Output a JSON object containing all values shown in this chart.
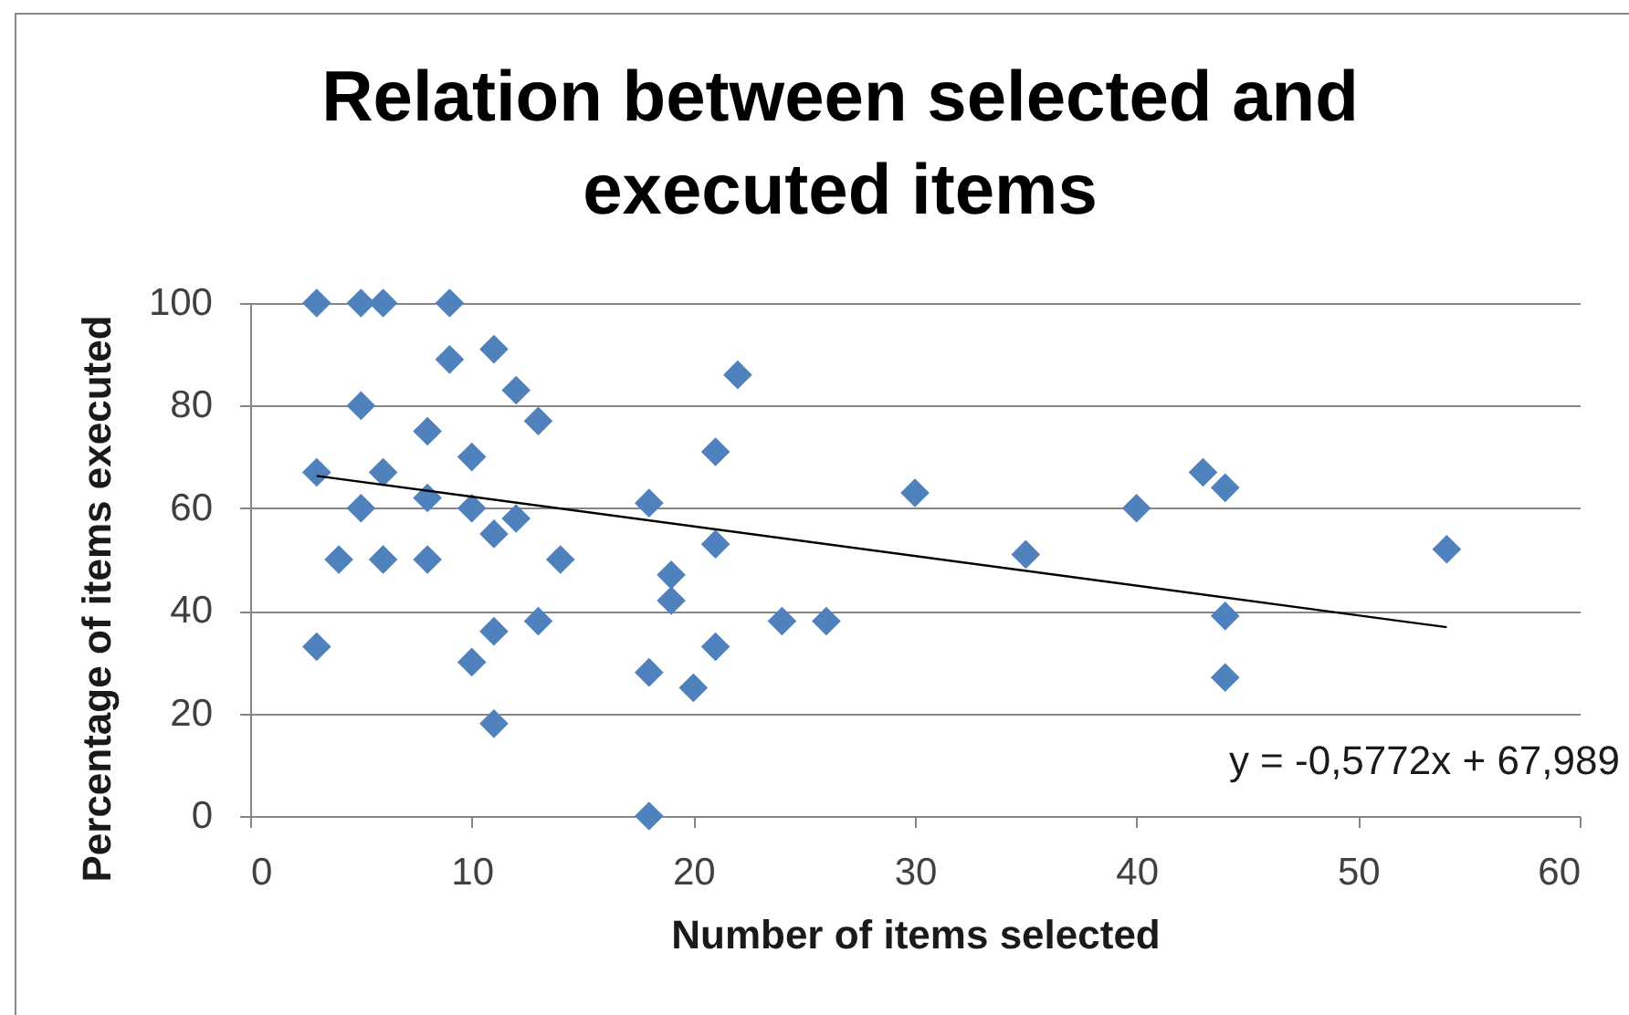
{
  "chart_data": {
    "type": "scatter",
    "title": "Relation between selected and executed items",
    "xlabel": "Number of items selected",
    "ylabel": "Percentage of items executed",
    "xlim": [
      0,
      60
    ],
    "xticks": [
      0,
      10,
      20,
      30,
      40,
      50,
      60
    ],
    "ylim": [
      0,
      100
    ],
    "yticks": [
      0,
      20,
      40,
      60,
      80,
      100
    ],
    "grid": "y",
    "series": [
      {
        "color": "#4f81bd",
        "marker": "diamond",
        "x": [
          3,
          3,
          3,
          4,
          5,
          5,
          5,
          6,
          6,
          6,
          8,
          8,
          8,
          9,
          9,
          10,
          10,
          10,
          11,
          11,
          11,
          11,
          12,
          12,
          13,
          13,
          14,
          18,
          18,
          18,
          19,
          19,
          20,
          21,
          21,
          21,
          22,
          24,
          26,
          30,
          35,
          40,
          43,
          44,
          44,
          44,
          54
        ],
        "values": [
          100,
          67,
          33,
          50,
          100,
          80,
          60,
          100,
          67,
          50,
          75,
          62,
          50,
          100,
          89,
          70,
          60,
          30,
          91,
          55,
          36,
          18,
          83,
          58,
          77,
          38,
          50,
          61,
          28,
          0,
          47,
          42,
          25,
          71,
          53,
          33,
          86,
          38,
          38,
          63,
          51,
          60,
          67,
          64,
          39,
          27,
          52
        ]
      },
      {
        "type": "line",
        "color": "#000000",
        "x": [
          3,
          54
        ],
        "values": [
          66.3,
          36.8
        ]
      }
    ],
    "annotations": [
      "y = -0,5772x + 67,989"
    ]
  }
}
